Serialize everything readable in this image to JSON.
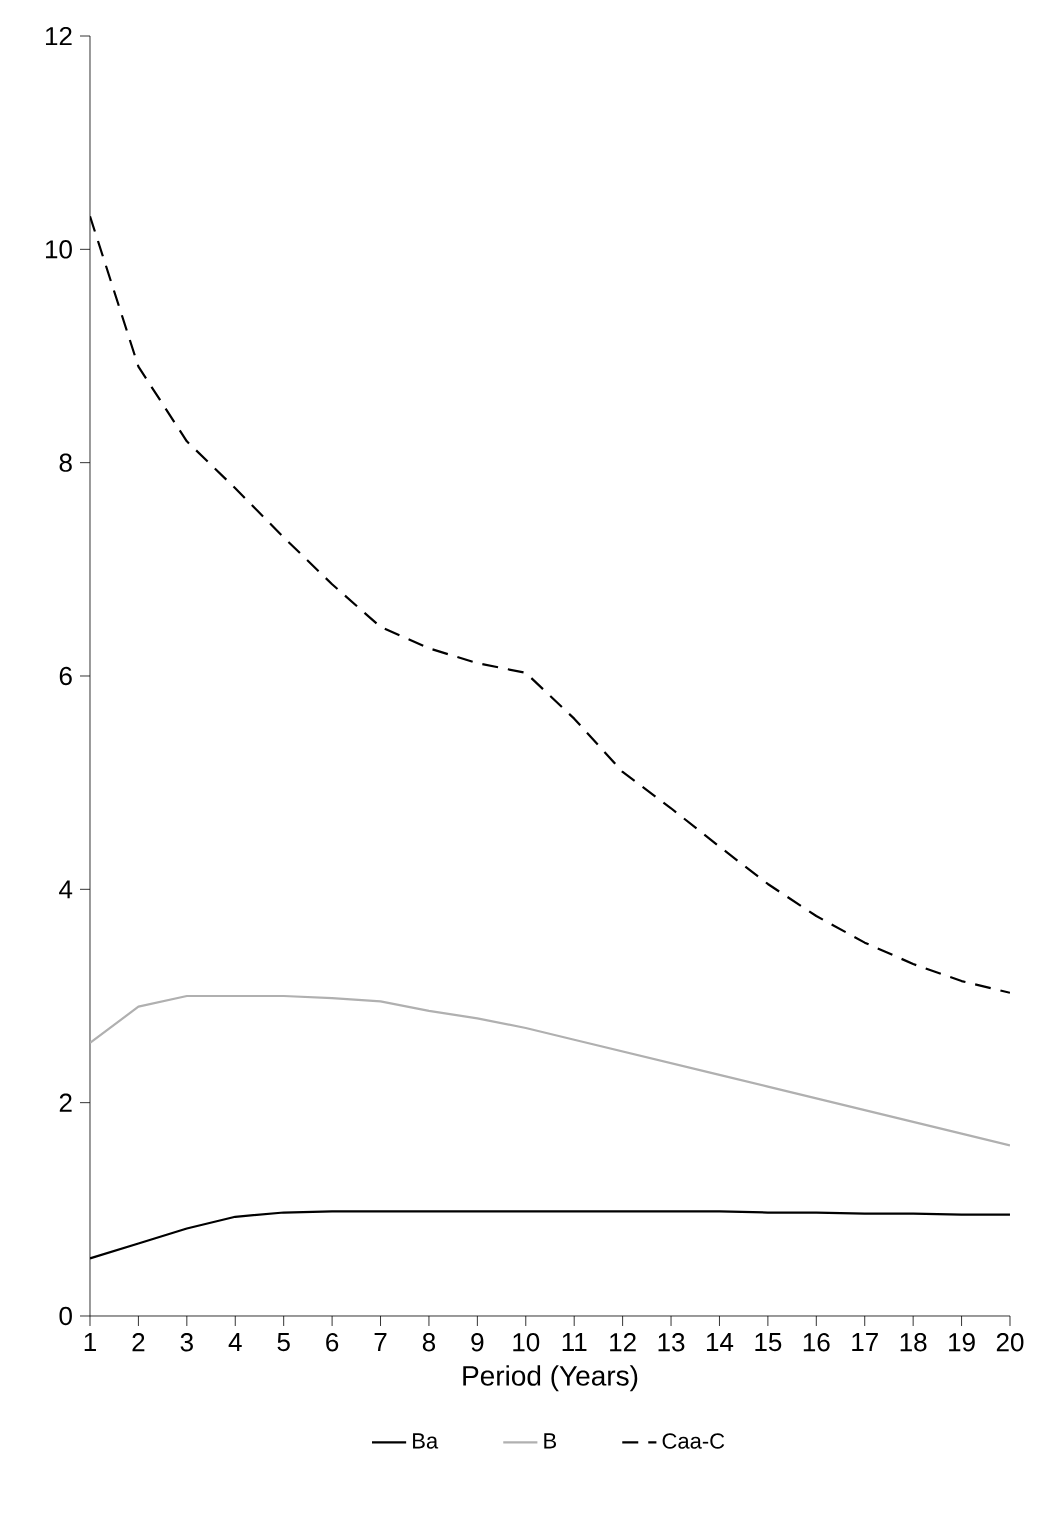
{
  "chart_data": {
    "type": "line",
    "xlabel": "Period (Years)",
    "x": [
      1,
      2,
      3,
      4,
      5,
      6,
      7,
      8,
      9,
      10,
      11,
      12,
      13,
      14,
      15,
      16,
      17,
      18,
      19,
      20
    ],
    "xlim": [
      1,
      20
    ],
    "xticks": [
      1,
      2,
      3,
      4,
      5,
      6,
      7,
      8,
      9,
      10,
      11,
      12,
      13,
      14,
      15,
      16,
      17,
      18,
      19,
      20
    ],
    "ylim": [
      0,
      12
    ],
    "yticks": [
      0,
      2,
      4,
      6,
      8,
      10,
      12
    ],
    "grid": false,
    "legend": "bottom",
    "marker": "none",
    "series": [
      {
        "name": "Ba",
        "color": "#000000",
        "line_style": "solid",
        "values": [
          0.54,
          0.68,
          0.82,
          0.93,
          0.97,
          0.98,
          0.98,
          0.98,
          0.98,
          0.98,
          0.98,
          0.98,
          0.98,
          0.98,
          0.97,
          0.97,
          0.96,
          0.96,
          0.95,
          0.95
        ]
      },
      {
        "name": "B",
        "color": "#b0b0b0",
        "line_style": "solid",
        "values": [
          2.56,
          2.9,
          3.0,
          3.0,
          3.0,
          2.98,
          2.95,
          2.86,
          2.79,
          2.7,
          2.59,
          2.48,
          2.37,
          2.26,
          2.15,
          2.04,
          1.93,
          1.82,
          1.71,
          1.6
        ]
      },
      {
        "name": "Caa-C",
        "color": "#000000",
        "line_style": "dashed",
        "values": [
          10.31,
          8.9,
          8.2,
          7.76,
          7.3,
          6.86,
          6.46,
          6.26,
          6.12,
          6.03,
          5.6,
          5.1,
          4.76,
          4.4,
          4.05,
          3.75,
          3.5,
          3.3,
          3.14,
          3.03
        ]
      }
    ]
  }
}
